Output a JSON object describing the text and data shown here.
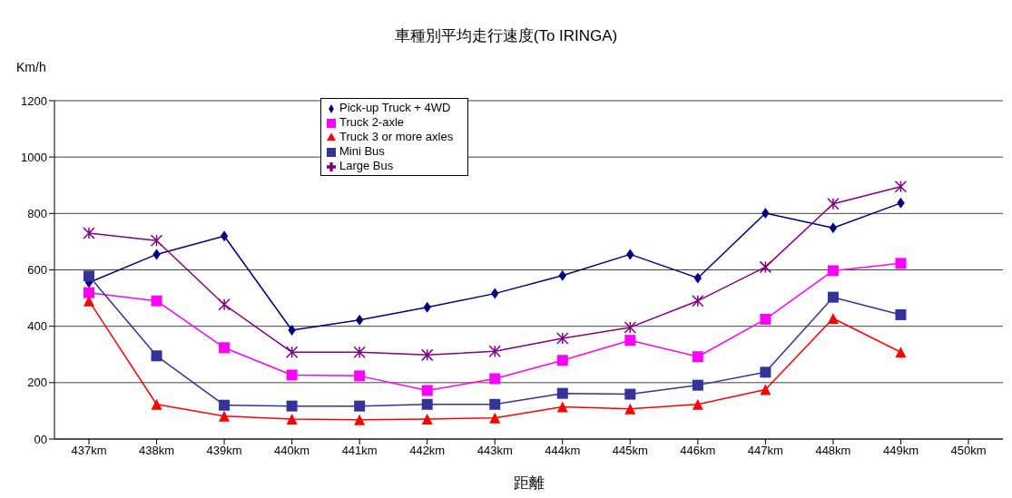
{
  "chart_data": {
    "type": "line",
    "title": "車種別平均走行速度(To IRINGA)",
    "ylabel": "Km/h",
    "xlabel": "距離",
    "categories": [
      "437km",
      "438km",
      "439km",
      "440km",
      "441km",
      "442km",
      "443km",
      "444km",
      "445km",
      "446km",
      "447km",
      "448km",
      "449km",
      "450km"
    ],
    "ylim": [
      0,
      1200
    ],
    "yticks": [
      {
        "value": 0,
        "label": "00"
      },
      200,
      400,
      600,
      800,
      1000,
      1200
    ],
    "grid": "y",
    "legend": "top left",
    "series": [
      {
        "name": "Pick-up Truck + 4WD",
        "color": "#000080",
        "marker": "diamond",
        "values": [
          555,
          655,
          720,
          386,
          422,
          467,
          516,
          580,
          655,
          571,
          801,
          749,
          837,
          null
        ]
      },
      {
        "name": "Truck 2-axle",
        "color": "#ff00ff",
        "marker": "square",
        "values": [
          519,
          490,
          324,
          227,
          224,
          172,
          214,
          279,
          350,
          292,
          425,
          597,
          623,
          null
        ]
      },
      {
        "name": "Truck 3 or more axles",
        "color": "#ff0000",
        "marker": "triangle",
        "values": [
          490,
          123,
          81,
          71,
          68,
          71,
          75,
          114,
          107,
          123,
          175,
          428,
          308,
          null
        ]
      },
      {
        "name": "Mini Bus",
        "color": "#333399",
        "marker": "square",
        "values": [
          578,
          295,
          120,
          117,
          117,
          123,
          123,
          162,
          159,
          191,
          237,
          503,
          441,
          null
        ]
      },
      {
        "name": "Large Bus",
        "color": "#800080",
        "marker": "cross",
        "values": [
          730,
          704,
          477,
          308,
          308,
          298,
          311,
          357,
          396,
          490,
          610,
          834,
          895,
          null
        ]
      }
    ]
  }
}
